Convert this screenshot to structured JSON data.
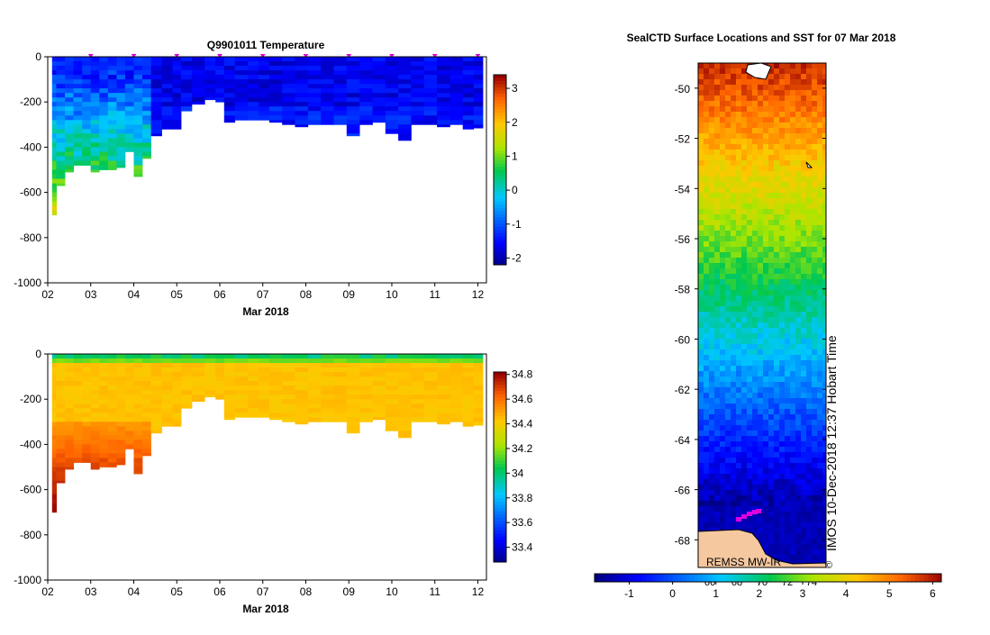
{
  "chart_data": [
    {
      "type": "heatmap",
      "title": "Q9901011  Temperature",
      "xlabel": "Mar 2018",
      "ylabel": "",
      "x_tick_labels": [
        "02",
        "03",
        "04",
        "05",
        "06",
        "07",
        "08",
        "09",
        "10",
        "11",
        "12"
      ],
      "y_tick_labels": [
        "0",
        "-200",
        "-400",
        "-600",
        "-800",
        "-1000"
      ],
      "ylim": [
        -1000,
        0
      ],
      "colorbar_ticks": [
        "3",
        "2",
        "1",
        "0",
        "-1",
        "-2"
      ],
      "colorbar_range": [
        -2.2,
        3.4
      ],
      "profile_days": [
        2.1,
        2.3,
        2.5,
        2.7,
        2.9,
        3.1,
        3.3,
        3.5,
        3.7,
        3.9,
        4.1,
        4.3,
        4.5,
        4.8,
        5.0,
        5.2,
        5.5,
        5.8,
        6.0,
        6.2,
        6.5,
        6.8,
        7.0,
        7.3,
        7.6,
        7.9,
        8.2,
        8.5,
        8.8,
        9.1,
        9.4,
        9.7,
        10.0,
        10.3,
        10.6,
        10.9,
        11.2,
        11.5,
        11.8,
        12.0
      ],
      "profile_max_depth_m": [
        700,
        570,
        510,
        480,
        480,
        510,
        500,
        500,
        490,
        420,
        530,
        450,
        350,
        320,
        320,
        240,
        210,
        190,
        200,
        290,
        280,
        280,
        280,
        290,
        300,
        310,
        300,
        300,
        300,
        350,
        300,
        290,
        340,
        370,
        300,
        300,
        310,
        300,
        320,
        315
      ],
      "surface_marker_days": [
        3.0,
        4.0,
        5.0,
        6.0,
        7.0,
        8.0,
        9.0,
        10.0,
        11.0,
        12.0
      ]
    },
    {
      "type": "heatmap",
      "title": "",
      "xlabel": "Mar 2018",
      "ylabel": "",
      "x_tick_labels": [
        "02",
        "03",
        "04",
        "05",
        "06",
        "07",
        "08",
        "09",
        "10",
        "11",
        "12"
      ],
      "y_tick_labels": [
        "0",
        "-200",
        "-400",
        "-600",
        "-800",
        "-1000"
      ],
      "ylim": [
        -1000,
        0
      ],
      "colorbar_ticks": [
        "34.8",
        "34.6",
        "34.4",
        "34.2",
        "34",
        "33.8",
        "33.6",
        "33.4"
      ],
      "colorbar_range": [
        33.28,
        34.82
      ]
    },
    {
      "type": "heatmap",
      "title": "SealCTD Surface Locations and SST for 07 Mar 2018",
      "y_tick_labels": [
        "-50",
        "-52",
        "-54",
        "-56",
        "-58",
        "-60",
        "-62",
        "-64",
        "-66",
        "-68"
      ],
      "ylim": [
        -69.1,
        -49.0
      ],
      "colorbar_ticks": [
        "-1",
        "0",
        "1",
        "2",
        "3",
        "4",
        "5",
        "6"
      ],
      "colorbar_range": [
        -1.8,
        6.2
      ],
      "overlay_tick_labels": [
        "66",
        "68",
        "70",
        "72",
        "74"
      ],
      "side_label": "IMOS 10-Dec-2018 12:37 Hobart Time",
      "source_label": "REMSS MW-IR",
      "copyright_mark": "©"
    }
  ],
  "colors": {
    "marker": "#e000e0",
    "land": "#f5c8a0",
    "track": "#c000c0"
  }
}
